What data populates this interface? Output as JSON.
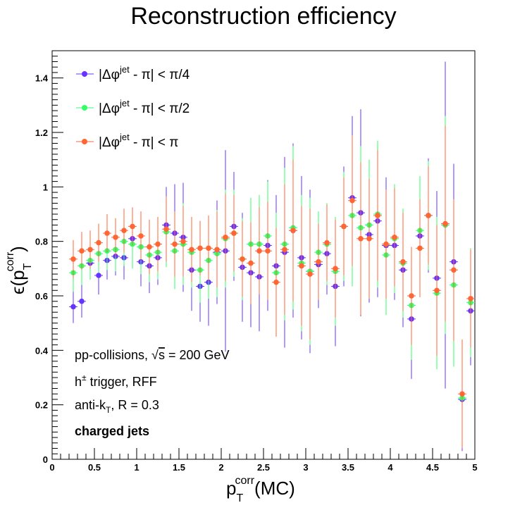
{
  "chart_data": {
    "type": "scatter",
    "title": "Reconstruction efficiency",
    "xlabel": {
      "base": "p",
      "sub": "T",
      "sup": "corr",
      "suffix": "(MC)"
    },
    "ylabel": {
      "base": "ϵ(p",
      "sub": "T",
      "sup": "corr",
      "suffix": ")"
    },
    "xlim": [
      0,
      5
    ],
    "ylim": [
      0,
      1.5
    ],
    "xticks": [
      "0",
      "0.5",
      "1",
      "1.5",
      "2",
      "2.5",
      "3",
      "3.5",
      "4",
      "4.5",
      "5"
    ],
    "yticks": [
      "0",
      "0.2",
      "0.4",
      "0.6",
      "0.8",
      "1",
      "1.2",
      "1.4"
    ],
    "grid": false,
    "legend_position": "top-left",
    "x": [
      0.25,
      0.35,
      0.45,
      0.55,
      0.65,
      0.75,
      0.85,
      0.95,
      1.05,
      1.15,
      1.25,
      1.35,
      1.45,
      1.55,
      1.65,
      1.75,
      1.85,
      1.95,
      2.05,
      2.15,
      2.25,
      2.35,
      2.45,
      2.55,
      2.65,
      2.75,
      2.85,
      2.95,
      3.05,
      3.15,
      3.25,
      3.35,
      3.45,
      3.55,
      3.65,
      3.75,
      3.85,
      3.95,
      4.05,
      4.15,
      4.25,
      4.35,
      4.45,
      4.55,
      4.65,
      4.75,
      4.85,
      4.95
    ],
    "series": [
      {
        "name": "|Δφ^jet - π| < π/4",
        "legend": {
          "pre": "|Δφ",
          "sup": "jet",
          "post": " - π| < π/4"
        },
        "color": "#6633ff",
        "values": [
          0.56,
          0.58,
          0.72,
          0.675,
          0.73,
          0.745,
          0.74,
          0.81,
          0.725,
          0.71,
          0.74,
          0.86,
          0.83,
          0.815,
          0.695,
          0.635,
          0.65,
          0.76,
          0.765,
          0.855,
          0.705,
          0.685,
          0.67,
          0.785,
          0.71,
          0.76,
          0.84,
          0.74,
          0.69,
          0.715,
          0.755,
          0.635,
          0.855,
          0.96,
          0.905,
          0.825,
          0.875,
          0.785,
          0.785,
          0.695,
          0.515,
          0.82,
          0.895,
          0.665,
          0.86,
          0.725,
          0.22,
          0.545
        ],
        "errors": [
          0.06,
          0.06,
          0.06,
          0.07,
          0.07,
          0.07,
          0.08,
          0.09,
          0.09,
          0.1,
          0.1,
          0.14,
          0.18,
          0.2,
          0.15,
          0.13,
          0.16,
          0.19,
          0.37,
          0.2,
          0.2,
          0.2,
          0.2,
          0.24,
          0.26,
          0.35,
          0.32,
          0.3,
          0.3,
          0.16,
          0.15,
          0.22,
          0.22,
          0.3,
          0.38,
          0.25,
          0.28,
          0.25,
          0.2,
          0.21,
          0.22,
          0.2,
          0.21,
          0.32,
          0.6,
          0.36,
          0.19,
          0.2
        ]
      },
      {
        "name": "|Δφ^jet - π| < π/2",
        "legend": {
          "pre": "|Δφ",
          "sup": "jet",
          "post": " - π| < π/2"
        },
        "color": "#33ff66",
        "values": [
          0.685,
          0.71,
          0.73,
          0.755,
          0.765,
          0.77,
          0.8,
          0.79,
          0.78,
          0.75,
          0.76,
          0.835,
          0.765,
          0.79,
          0.76,
          0.695,
          0.73,
          0.755,
          0.81,
          0.83,
          0.735,
          0.79,
          0.79,
          0.82,
          0.685,
          0.79,
          0.85,
          0.72,
          0.69,
          0.76,
          0.79,
          0.69,
          0.855,
          0.895,
          0.85,
          0.86,
          0.9,
          0.75,
          0.81,
          0.72,
          0.565,
          0.84,
          0.895,
          0.61,
          0.86,
          0.64,
          0.225,
          0.575
        ],
        "errors": [
          0.07,
          0.07,
          0.07,
          0.07,
          0.07,
          0.08,
          0.09,
          0.09,
          0.1,
          0.1,
          0.1,
          0.13,
          0.14,
          0.15,
          0.13,
          0.12,
          0.14,
          0.16,
          0.18,
          0.16,
          0.15,
          0.17,
          0.18,
          0.2,
          0.22,
          0.28,
          0.3,
          0.25,
          0.27,
          0.15,
          0.15,
          0.2,
          0.2,
          0.26,
          0.3,
          0.24,
          0.27,
          0.22,
          0.2,
          0.2,
          0.2,
          0.2,
          0.2,
          0.28,
          0.4,
          0.3,
          0.18,
          0.2
        ]
      },
      {
        "name": "|Δφ^jet - π| < π",
        "legend": {
          "pre": "|Δφ",
          "sup": "jet",
          "post": " - π| < π"
        },
        "color": "#ff6633",
        "values": [
          0.735,
          0.765,
          0.77,
          0.795,
          0.83,
          0.815,
          0.84,
          0.855,
          0.82,
          0.78,
          0.79,
          0.845,
          0.79,
          0.8,
          0.77,
          0.775,
          0.775,
          0.77,
          0.815,
          0.83,
          0.735,
          0.72,
          0.765,
          0.765,
          0.65,
          0.77,
          0.84,
          0.71,
          0.68,
          0.725,
          0.795,
          0.7,
          0.855,
          0.95,
          0.81,
          0.81,
          0.895,
          0.79,
          0.815,
          0.725,
          0.6,
          0.775,
          0.895,
          0.62,
          0.865,
          0.695,
          0.24,
          0.59
        ],
        "errors": [
          0.07,
          0.07,
          0.07,
          0.07,
          0.07,
          0.07,
          0.08,
          0.07,
          0.09,
          0.1,
          0.1,
          0.12,
          0.12,
          0.13,
          0.12,
          0.1,
          0.12,
          0.14,
          0.16,
          0.14,
          0.14,
          0.15,
          0.16,
          0.18,
          0.2,
          0.24,
          0.26,
          0.22,
          0.24,
          0.14,
          0.14,
          0.18,
          0.18,
          0.24,
          0.28,
          0.22,
          0.24,
          0.2,
          0.18,
          0.18,
          0.18,
          0.18,
          0.18,
          0.24,
          0.36,
          0.26,
          0.2,
          0.18
        ]
      }
    ],
    "annotations": {
      "line1_pre": "pp-collisions, ",
      "line1_sqrt": "√",
      "line1_s": "s",
      "line1_post": " = 200 GeV",
      "line2_pre": "h",
      "line2_sup": "±",
      "line2_post": " trigger, RFF",
      "line3_pre": "anti-k",
      "line3_sub": "T",
      "line3_post": ", R = 0.3",
      "line4": "charged jets"
    }
  }
}
